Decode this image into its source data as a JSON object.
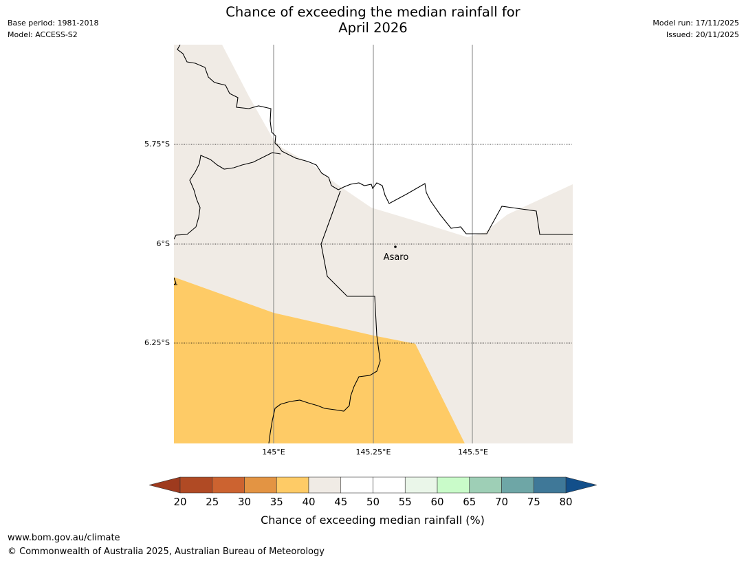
{
  "header": {
    "title_line1": "Chance of exceeding the median rainfall for",
    "title_line2": "April 2026",
    "base_period": "Base period: 1981-2018",
    "model": "Model: ACCESS-S2",
    "model_run": "Model run: 17/11/2025",
    "issued": "Issued: 20/11/2025"
  },
  "map": {
    "latitude_labels": [
      "5.75°S",
      "6°S",
      "6.25°S"
    ],
    "longitude_labels": [
      "145°E",
      "145.25°E",
      "145.5°E"
    ],
    "place": {
      "name": "Asaro"
    },
    "colors": {
      "neutral_40_45": "#f0ebe5",
      "below_35_40": "#fecb66",
      "above_45_55": "#ffffff",
      "boundary": "#000000",
      "gridline_lon": "#808080",
      "gridline_lat": "#000000"
    }
  },
  "colorbar": {
    "label": "Chance of exceeding median rainfall (%)",
    "ticks": [
      "20",
      "25",
      "30",
      "35",
      "40",
      "45",
      "50",
      "55",
      "60",
      "65",
      "70",
      "75",
      "80"
    ],
    "under_color": "#9e3a1e",
    "over_color": "#124f8a",
    "bins": [
      {
        "range": "20-25",
        "color": "#b04a24"
      },
      {
        "range": "25-30",
        "color": "#cc6330"
      },
      {
        "range": "30-35",
        "color": "#e39443"
      },
      {
        "range": "35-40",
        "color": "#fecb66"
      },
      {
        "range": "40-45",
        "color": "#f0ebe5"
      },
      {
        "range": "45-50",
        "color": "#ffffff"
      },
      {
        "range": "50-55",
        "color": "#ffffff"
      },
      {
        "range": "55-60",
        "color": "#eaf6e9"
      },
      {
        "range": "60-65",
        "color": "#c9fbc9"
      },
      {
        "range": "65-70",
        "color": "#9ecfb6"
      },
      {
        "range": "70-75",
        "color": "#6ea6a6"
      },
      {
        "range": "75-80",
        "color": "#3f7898"
      }
    ]
  },
  "footer": {
    "url": "www.bom.gov.au/climate",
    "copyright": "© Commonwealth of Australia 2025, Australian Bureau of Meteorology"
  }
}
